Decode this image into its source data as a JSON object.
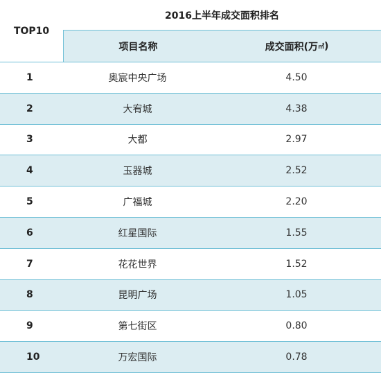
{
  "header": {
    "corner_label": "TOP10",
    "title": "2016上半年成交面积排名",
    "col_name": "项目名称",
    "col_area": "成交面积(万",
    "col_area_unit": "㎡",
    "col_area_close": ")"
  },
  "rows": [
    {
      "rank": "1",
      "name": "奥宸中央广场",
      "area": "4.50"
    },
    {
      "rank": "2",
      "name": "大宥城",
      "area": "4.38"
    },
    {
      "rank": "3",
      "name": "大都",
      "area": "2.97"
    },
    {
      "rank": "4",
      "name": "玉器城",
      "area": "2.52"
    },
    {
      "rank": "5",
      "name": "广福城",
      "area": "2.20"
    },
    {
      "rank": "6",
      "name": "红星国际",
      "area": "1.55"
    },
    {
      "rank": "7",
      "name": "花花世界",
      "area": "1.52"
    },
    {
      "rank": "8",
      "name": "昆明广场",
      "area": "1.05"
    },
    {
      "rank": "9",
      "name": "第七街区",
      "area": "0.80"
    },
    {
      "rank": "10",
      "name": "万宏国际",
      "area": "0.78"
    }
  ]
}
